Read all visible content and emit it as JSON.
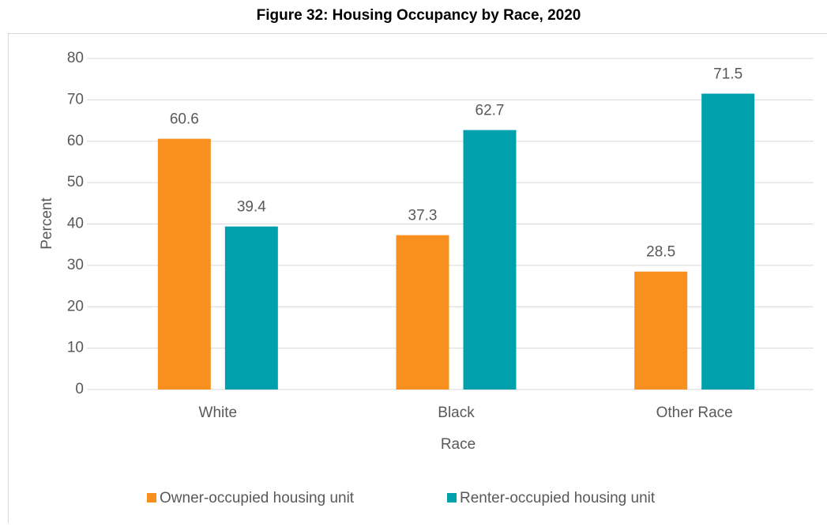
{
  "chart_data": {
    "type": "bar",
    "title": "Figure 32: Housing Occupancy by Race, 2020",
    "categories": [
      "White",
      "Black",
      "Other Race"
    ],
    "series": [
      {
        "name": "Owner-occupied housing unit",
        "color": "#f7901e",
        "values": [
          60.6,
          37.3,
          28.5
        ]
      },
      {
        "name": "Renter-occupied housing unit",
        "color": "#00a0ad",
        "values": [
          39.4,
          62.7,
          71.5
        ]
      }
    ],
    "xlabel": "Race",
    "ylabel": "Percent",
    "ylim": [
      0,
      80
    ],
    "yticks": [
      0,
      10,
      20,
      30,
      40,
      50,
      60,
      70,
      80
    ],
    "grid": true,
    "legend": "bottom"
  }
}
